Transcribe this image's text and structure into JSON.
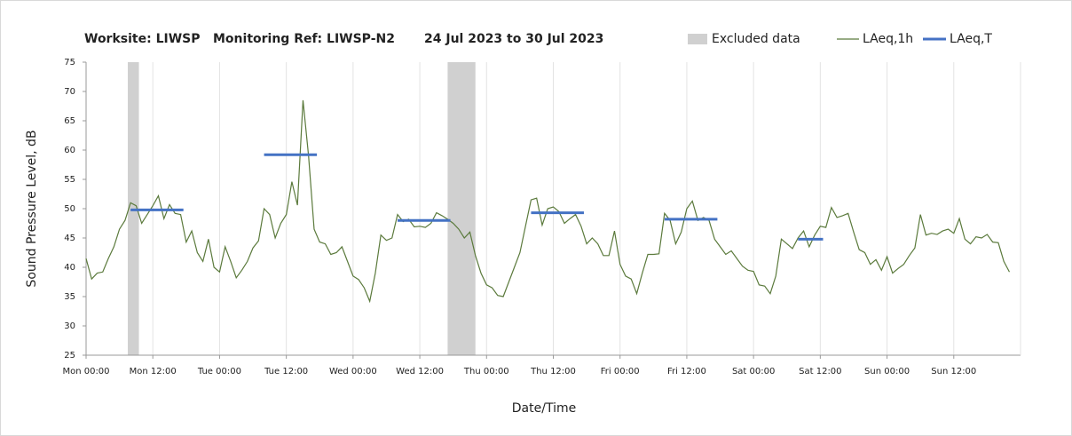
{
  "chart_data": {
    "type": "line",
    "title": [
      "Worksite: LIWSP",
      "Monitoring Ref: LIWSP-N2",
      "24 Jul 2023 to 30 Jul 2023"
    ],
    "x_label": "Date/Time",
    "y_label": "Sound Pressure Level, dB",
    "xlim": [
      0,
      168
    ],
    "xticks": [
      {
        "value": 0,
        "label": "Mon 00:00"
      },
      {
        "value": 12,
        "label": "Mon 12:00"
      },
      {
        "value": 24,
        "label": "Tue 00:00"
      },
      {
        "value": 36,
        "label": "Tue 12:00"
      },
      {
        "value": 48,
        "label": "Wed 00:00"
      },
      {
        "value": 60,
        "label": "Wed 12:00"
      },
      {
        "value": 72,
        "label": "Thu 00:00"
      },
      {
        "value": 84,
        "label": "Thu 12:00"
      },
      {
        "value": 96,
        "label": "Fri 00:00"
      },
      {
        "value": 108,
        "label": "Fri 12:00"
      },
      {
        "value": 120,
        "label": "Sat 00:00"
      },
      {
        "value": 132,
        "label": "Sat 12:00"
      },
      {
        "value": 144,
        "label": "Sun 00:00"
      },
      {
        "value": 156,
        "label": "Sun 12:00"
      }
    ],
    "ylim": [
      25,
      75
    ],
    "yticks": [
      25,
      30,
      35,
      40,
      45,
      50,
      55,
      60,
      65,
      70,
      75
    ],
    "grid": "x",
    "series": [
      {
        "name": "LAeq,1h",
        "color": "#5b7a3c",
        "x": [
          0,
          1,
          2,
          3,
          4,
          5,
          6,
          7,
          8,
          9,
          10,
          11,
          12,
          13,
          14,
          15,
          16,
          17,
          18,
          19,
          20,
          21,
          22,
          23,
          24,
          25,
          26,
          27,
          28,
          29,
          30,
          31,
          32,
          33,
          34,
          35,
          36,
          37,
          38,
          39,
          40,
          41,
          42,
          43,
          44,
          45,
          46,
          47,
          48,
          49,
          50,
          51,
          52,
          53,
          54,
          55,
          56,
          57,
          58,
          59,
          60,
          61,
          62,
          63,
          64,
          65,
          66,
          67,
          68,
          69,
          70,
          71,
          72,
          73,
          74,
          75,
          76,
          77,
          78,
          79,
          80,
          81,
          82,
          83,
          84,
          85,
          86,
          87,
          88,
          89,
          90,
          91,
          92,
          93,
          94,
          95,
          96,
          97,
          98,
          99,
          100,
          101,
          102,
          103,
          104,
          105,
          106,
          107,
          108,
          109,
          110,
          111,
          112,
          113,
          114,
          115,
          116,
          117,
          118,
          119,
          120,
          121,
          122,
          123,
          124,
          125,
          126,
          127,
          128,
          129,
          130,
          131,
          132,
          133,
          134,
          135,
          136,
          137,
          138,
          139,
          140,
          141,
          142,
          143,
          144,
          145,
          146,
          147,
          148,
          149,
          150,
          151,
          152,
          153,
          154,
          155,
          156,
          157,
          158,
          159,
          160,
          161,
          162,
          163,
          164,
          165,
          166
        ],
        "values": [
          41.5,
          38,
          39,
          39.2,
          41.5,
          43.5,
          46.5,
          48,
          51,
          50.5,
          47.5,
          49,
          50.5,
          52.2,
          48.3,
          50.7,
          49.2,
          49,
          44.3,
          46.2,
          42.5,
          41,
          44.8,
          40,
          39.2,
          43.5,
          41,
          38.2,
          39.5,
          41,
          43.3,
          44.5,
          50,
          49,
          45,
          47.5,
          49,
          54.6,
          50.6,
          68.5,
          59,
          46.5,
          44.3,
          44,
          42.2,
          42.5,
          43.5,
          41,
          38.5,
          37.9,
          36.5,
          34.2,
          39,
          45.5,
          44.6,
          45,
          49,
          47.8,
          48.2,
          46.9,
          47,
          46.8,
          47.5,
          49.3,
          48.8,
          48.2,
          47.5,
          46.5,
          45,
          46,
          42,
          39,
          37,
          36.5,
          35.2,
          35,
          37.5,
          40,
          42.5,
          47,
          51.5,
          51.8,
          47.2,
          50,
          50.3,
          49.5,
          47.5,
          48.3,
          49,
          47,
          44,
          45,
          44,
          42,
          42,
          46.2,
          40.5,
          38.5,
          38,
          35.5,
          39,
          42.2,
          42.2,
          42.3,
          49.2,
          48,
          44,
          46,
          50,
          51.3,
          48,
          48.5,
          48,
          44.8,
          43.5,
          42.2,
          42.8,
          41.5,
          40.2,
          39.5,
          39.3,
          37,
          36.8,
          35.5,
          38.5,
          44.8,
          44,
          43.2,
          45,
          46.2,
          43.5,
          45.5,
          47,
          46.8,
          50.2,
          48.5,
          48.8,
          49.2,
          46,
          43,
          42.5,
          40.5,
          41.3,
          39.5,
          41.8,
          39,
          39.8,
          40.5,
          42,
          43.3,
          49,
          45.5,
          45.8,
          45.6,
          46.2,
          46.5,
          45.8,
          48.3,
          44.8,
          44,
          45.2,
          45,
          45.6,
          44.3,
          44.2,
          41,
          39.2
        ]
      }
    ],
    "excluded": {
      "name": "Excluded data",
      "color": "#d0d0d0",
      "ranges": [
        [
          7.5,
          9.5
        ],
        [
          65,
          70
        ]
      ]
    },
    "period_levels": {
      "name": "LAeq,T",
      "color": "#4472c4",
      "segments": [
        {
          "x": [
            8,
            17.5
          ],
          "value": 49.8
        },
        {
          "x": [
            32,
            41.5
          ],
          "value": 59.2
        },
        {
          "x": [
            56,
            65.5
          ],
          "value": 48
        },
        {
          "x": [
            80,
            89.5
          ],
          "value": 49.3
        },
        {
          "x": [
            104,
            113.5
          ],
          "value": 48.2
        },
        {
          "x": [
            128,
            132.5
          ],
          "value": 44.8
        }
      ]
    }
  }
}
